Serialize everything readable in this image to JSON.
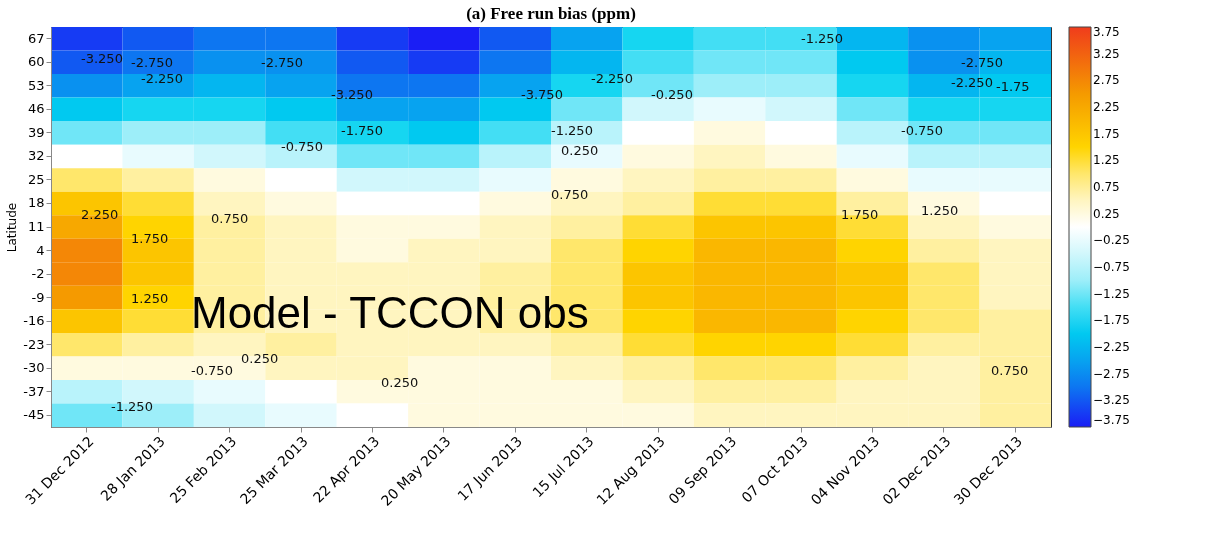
{
  "chart_data": {
    "type": "heatmap",
    "title": "(a) Free run bias (ppm)",
    "ylabel": "Latitude",
    "categories": [
      "31 Dec 2012",
      "28 Jan 2013",
      "25 Feb 2013",
      "25 Mar 2013",
      "22 Apr 2013",
      "20 May 2013",
      "17 Jun 2013",
      "15 Jul 2013",
      "12 Aug 2013",
      "09 Sep 2013",
      "07 Oct 2013",
      "04 Nov 2013",
      "02 Dec 2013",
      "30 Dec 2013"
    ],
    "y_categories": [
      "67",
      "60",
      "53",
      "46",
      "39",
      "32",
      "25",
      "18",
      "11",
      "4",
      "-2",
      "-9",
      "-16",
      "-23",
      "-30",
      "-37",
      "-45"
    ],
    "cells": [
      [
        -3.5,
        -3.25,
        -3.0,
        -3.0,
        -3.5,
        -3.75,
        -3.25,
        -2.5,
        -1.75,
        -1.5,
        -1.5,
        -2.25,
        -2.75,
        -2.5
      ],
      [
        -3.25,
        -3.0,
        -2.75,
        -2.75,
        -3.25,
        -3.5,
        -3.0,
        -2.25,
        -1.5,
        -1.25,
        -1.25,
        -2.0,
        -2.75,
        -2.25
      ],
      [
        -2.75,
        -2.5,
        -2.25,
        -2.5,
        -3.0,
        -3.0,
        -2.5,
        -1.75,
        -1.25,
        -1.0,
        -1.0,
        -1.75,
        -2.25,
        -2.0
      ],
      [
        -2.0,
        -1.75,
        -1.75,
        -2.0,
        -2.5,
        -2.5,
        -2.0,
        -1.25,
        -0.5,
        -0.25,
        -0.5,
        -1.25,
        -1.75,
        -1.75
      ],
      [
        -1.25,
        -1.0,
        -1.0,
        -1.5,
        -1.75,
        -2.0,
        -1.5,
        -0.75,
        0.0,
        0.25,
        0.0,
        -0.75,
        -1.25,
        -1.25
      ],
      [
        0.0,
        -0.25,
        -0.5,
        -0.75,
        -1.25,
        -1.25,
        -0.75,
        -0.25,
        0.25,
        0.5,
        0.25,
        -0.25,
        -0.75,
        -0.75
      ],
      [
        1.0,
        0.75,
        0.25,
        0.0,
        -0.5,
        -0.5,
        -0.25,
        0.25,
        0.5,
        0.75,
        0.75,
        0.25,
        -0.25,
        -0.25
      ],
      [
        1.75,
        1.25,
        0.5,
        0.25,
        0.0,
        0.0,
        0.25,
        0.5,
        0.75,
        1.25,
        1.25,
        0.75,
        0.25,
        0.0
      ],
      [
        2.25,
        1.5,
        0.75,
        0.5,
        0.25,
        0.25,
        0.5,
        0.75,
        1.25,
        1.75,
        1.75,
        1.25,
        0.5,
        0.25
      ],
      [
        2.75,
        1.75,
        0.75,
        0.5,
        0.25,
        0.5,
        0.5,
        1.0,
        1.5,
        2.0,
        2.0,
        1.5,
        0.75,
        0.5
      ],
      [
        2.75,
        1.75,
        0.75,
        0.5,
        0.5,
        0.5,
        0.75,
        1.0,
        1.75,
        2.0,
        2.0,
        1.75,
        1.0,
        0.5
      ],
      [
        2.5,
        1.5,
        0.75,
        0.5,
        0.5,
        0.5,
        0.75,
        1.0,
        1.75,
        2.0,
        2.0,
        1.75,
        1.0,
        0.5
      ],
      [
        1.75,
        1.25,
        0.75,
        0.5,
        0.5,
        0.5,
        0.75,
        1.0,
        1.5,
        2.0,
        2.0,
        1.5,
        1.0,
        0.75
      ],
      [
        1.0,
        0.75,
        0.5,
        0.75,
        0.5,
        0.5,
        0.5,
        0.75,
        1.25,
        1.5,
        1.5,
        1.25,
        0.75,
        0.75
      ],
      [
        0.25,
        0.25,
        0.25,
        0.5,
        0.5,
        0.25,
        0.25,
        0.5,
        0.75,
        1.0,
        1.0,
        0.75,
        0.5,
        0.75
      ],
      [
        -0.75,
        -0.5,
        -0.25,
        0.0,
        0.25,
        0.25,
        0.25,
        0.25,
        0.5,
        0.75,
        0.75,
        0.5,
        0.5,
        0.75
      ],
      [
        -1.25,
        -1.0,
        -0.5,
        -0.25,
        0.0,
        0.25,
        0.25,
        0.25,
        0.25,
        0.5,
        0.5,
        0.5,
        0.5,
        0.75
      ]
    ],
    "clim": [
      -3.75,
      3.75
    ],
    "cticks": [
      3.75,
      3.25,
      2.75,
      2.25,
      1.75,
      1.25,
      0.75,
      0.25,
      {
        "value": -0.25,
        "label": "−0.25"
      },
      {
        "value": -0.75,
        "label": "−0.75"
      },
      {
        "value": -1.25,
        "label": "−1.25"
      },
      {
        "value": -1.75,
        "label": "−1.75"
      },
      {
        "value": -2.25,
        "label": "−2.25"
      },
      {
        "value": -2.75,
        "label": "−2.75"
      },
      {
        "value": -3.25,
        "label": "−3.25"
      },
      {
        "value": -3.75,
        "label": "−3.75"
      }
    ],
    "grid": false,
    "annotations": [
      "Model -  TCCON obs",
      "-3.250",
      "-2.750",
      "-2.250",
      "-2.750",
      "-3.250",
      "-3.750",
      "-2.250",
      "-1.750",
      "-0.750",
      "-1.250",
      "-0.250",
      "0.250",
      "0.750",
      "1.750",
      "1.250",
      "-1.250",
      "-2.750",
      "-2.250",
      "-1.75",
      "-0.750",
      "2.250",
      "1.750",
      "0.750",
      "1.250",
      "-0.750",
      "-1.250",
      "0.250",
      "0.250",
      "0.750"
    ]
  }
}
